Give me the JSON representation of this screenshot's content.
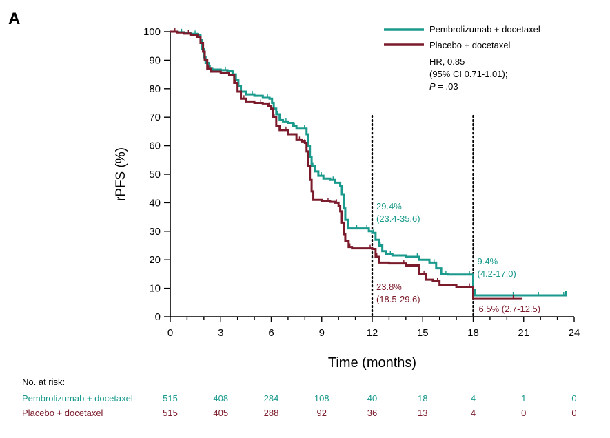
{
  "panel_label": "A",
  "colors": {
    "pembro": "#1a9a8c",
    "placebo": "#7a1a2a",
    "axis": "#000000"
  },
  "chart_data": {
    "type": "line",
    "subtype": "kaplan-meier step",
    "xlabel": "Time (months)",
    "ylabel": "rPFS (%)",
    "xlim": [
      0,
      24
    ],
    "ylim": [
      0,
      100
    ],
    "xticks": [
      0,
      3,
      6,
      9,
      12,
      15,
      18,
      21,
      24
    ],
    "yticks": [
      0,
      10,
      20,
      30,
      40,
      50,
      60,
      70,
      80,
      90,
      100
    ],
    "grid": false,
    "legend_position": "top-right",
    "stats": {
      "hr": "HR, 0.85",
      "ci": "(95% CI 0.71-1.01);",
      "p_label": "P",
      "p_value": " = .03"
    },
    "vlines": [
      12,
      18
    ],
    "series": [
      {
        "name": "Pembrolizumab + docetaxel",
        "color_key": "pembro",
        "points": [
          [
            0,
            100
          ],
          [
            0.4,
            99.8
          ],
          [
            0.8,
            99.5
          ],
          [
            1.2,
            99.2
          ],
          [
            1.6,
            98.8
          ],
          [
            1.8,
            97
          ],
          [
            1.9,
            94
          ],
          [
            2.0,
            91
          ],
          [
            2.1,
            89
          ],
          [
            2.3,
            87
          ],
          [
            2.5,
            86.7
          ],
          [
            3.0,
            86.5
          ],
          [
            3.4,
            86.2
          ],
          [
            3.7,
            85
          ],
          [
            3.9,
            83
          ],
          [
            4.05,
            81
          ],
          [
            4.2,
            79
          ],
          [
            4.5,
            78
          ],
          [
            5.0,
            77.5
          ],
          [
            5.5,
            76.8
          ],
          [
            5.9,
            76.5
          ],
          [
            6.05,
            75
          ],
          [
            6.15,
            73
          ],
          [
            6.3,
            71
          ],
          [
            6.5,
            69
          ],
          [
            6.7,
            68.5
          ],
          [
            7.0,
            68
          ],
          [
            7.3,
            67
          ],
          [
            7.5,
            66
          ],
          [
            8.0,
            66
          ],
          [
            8.1,
            64
          ],
          [
            8.2,
            60
          ],
          [
            8.3,
            56
          ],
          [
            8.4,
            53
          ],
          [
            8.6,
            51
          ],
          [
            8.8,
            49.5
          ],
          [
            9.1,
            48.5
          ],
          [
            9.5,
            48
          ],
          [
            9.8,
            47
          ],
          [
            10.1,
            46
          ],
          [
            10.2,
            43
          ],
          [
            10.3,
            38
          ],
          [
            10.4,
            34
          ],
          [
            10.55,
            31
          ],
          [
            11.2,
            31
          ],
          [
            11.6,
            31
          ],
          [
            11.8,
            30
          ],
          [
            12.0,
            29.4
          ],
          [
            12.2,
            27
          ],
          [
            12.4,
            25
          ],
          [
            12.6,
            23
          ],
          [
            12.8,
            22
          ],
          [
            13.2,
            21.5
          ],
          [
            14.0,
            21
          ],
          [
            14.8,
            20
          ],
          [
            15.4,
            19
          ],
          [
            15.8,
            17
          ],
          [
            16.1,
            15
          ],
          [
            16.5,
            14.8
          ],
          [
            17.5,
            14.8
          ],
          [
            17.9,
            14.8
          ],
          [
            18.0,
            9.4
          ],
          [
            18.1,
            7.5
          ],
          [
            18.6,
            7.5
          ],
          [
            20.5,
            7.5
          ],
          [
            21.4,
            7.5
          ],
          [
            22.0,
            7.5
          ],
          [
            23.5,
            7.5
          ],
          [
            23.5,
            9
          ]
        ]
      },
      {
        "name": "Placebo + docetaxel",
        "color_key": "placebo",
        "points": [
          [
            0,
            100
          ],
          [
            0.4,
            99.7
          ],
          [
            0.8,
            99.3
          ],
          [
            1.2,
            98.8
          ],
          [
            1.6,
            98.2
          ],
          [
            1.8,
            96
          ],
          [
            1.95,
            93
          ],
          [
            2.05,
            90
          ],
          [
            2.2,
            87
          ],
          [
            2.4,
            86
          ],
          [
            3.0,
            85.5
          ],
          [
            3.5,
            84.8
          ],
          [
            3.8,
            82
          ],
          [
            4.0,
            79
          ],
          [
            4.2,
            76.5
          ],
          [
            4.5,
            75.5
          ],
          [
            5.0,
            75
          ],
          [
            5.5,
            74.8
          ],
          [
            5.8,
            74
          ],
          [
            6.0,
            73
          ],
          [
            6.1,
            70
          ],
          [
            6.3,
            67
          ],
          [
            6.5,
            65.5
          ],
          [
            7.0,
            64
          ],
          [
            7.5,
            62
          ],
          [
            7.8,
            61.5
          ],
          [
            8.0,
            61
          ],
          [
            8.1,
            58
          ],
          [
            8.2,
            53
          ],
          [
            8.3,
            48
          ],
          [
            8.4,
            44
          ],
          [
            8.5,
            41
          ],
          [
            9.0,
            40.5
          ],
          [
            9.5,
            40.3
          ],
          [
            9.8,
            40
          ],
          [
            10.0,
            39
          ],
          [
            10.1,
            37
          ],
          [
            10.2,
            33
          ],
          [
            10.3,
            29
          ],
          [
            10.4,
            26.5
          ],
          [
            10.6,
            24.5
          ],
          [
            10.8,
            24
          ],
          [
            11.5,
            24
          ],
          [
            12.0,
            23.8
          ],
          [
            12.2,
            21
          ],
          [
            12.4,
            19
          ],
          [
            13.0,
            18.7
          ],
          [
            14.0,
            18
          ],
          [
            14.8,
            15
          ],
          [
            15.2,
            13
          ],
          [
            15.6,
            12.5
          ],
          [
            16.0,
            11
          ],
          [
            17.0,
            10.5
          ],
          [
            17.9,
            10.5
          ],
          [
            18.0,
            6.5
          ],
          [
            20.5,
            6.5
          ],
          [
            20.9,
            6.5
          ]
        ]
      }
    ],
    "annotations": [
      {
        "x": 12,
        "line1": "29.4%",
        "line2": "(23.4-35.6)",
        "color_key": "pembro"
      },
      {
        "x": 12,
        "line1": "23.8%",
        "line2": "(18.5-29.6)",
        "color_key": "placebo"
      },
      {
        "x": 18,
        "line1": "9.4%",
        "line2": "(4.2-17.0)",
        "color_key": "pembro"
      },
      {
        "x": 18,
        "line1": "6.5% (2.7-12.5)",
        "line2": "",
        "color_key": "placebo"
      }
    ]
  },
  "risk_table": {
    "title": "No. at risk:",
    "rows": [
      {
        "label": "Pembrolizumab + docetaxel",
        "color_key": "pembro",
        "values": [
          "515",
          "408",
          "284",
          "108",
          "40",
          "18",
          "4",
          "1",
          "0"
        ]
      },
      {
        "label": "Placebo + docetaxel",
        "color_key": "placebo",
        "values": [
          "515",
          "405",
          "288",
          "92",
          "36",
          "13",
          "4",
          "0",
          "0"
        ]
      }
    ]
  }
}
